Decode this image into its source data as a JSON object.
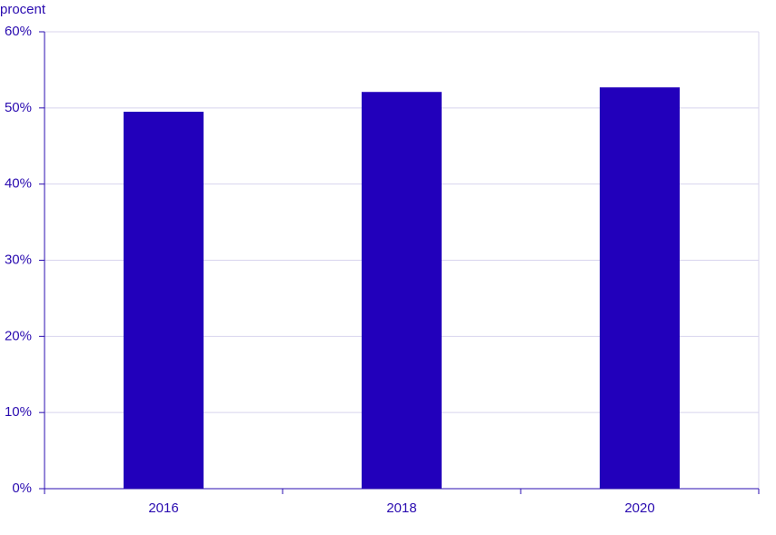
{
  "chart_data": {
    "type": "bar",
    "ylabel": "procent",
    "categories": [
      "2016",
      "2018",
      "2020"
    ],
    "values": [
      49.5,
      52.1,
      52.7
    ],
    "color": "#2200bb",
    "ylim": [
      0,
      60
    ],
    "yticks": [
      {
        "value": 0,
        "label": "0%"
      },
      {
        "value": 10,
        "label": "10%"
      },
      {
        "value": 20,
        "label": "20%"
      },
      {
        "value": 30,
        "label": "30%"
      },
      {
        "value": 40,
        "label": "40%"
      },
      {
        "value": 50,
        "label": "50%"
      },
      {
        "value": 60,
        "label": "60%"
      }
    ],
    "grid": true
  }
}
